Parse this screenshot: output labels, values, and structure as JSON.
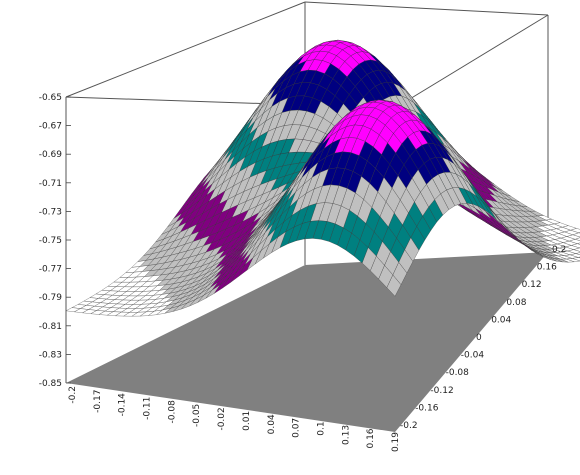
{
  "chart_data": {
    "type": "surface",
    "title": "",
    "z_axis": {
      "range": [
        -0.85,
        -0.65
      ],
      "ticks": [
        "-0.65",
        "-0.67",
        "-0.69",
        "-0.71",
        "-0.73",
        "-0.75",
        "-0.77",
        "-0.79",
        "-0.81",
        "-0.83",
        "-0.85"
      ]
    },
    "x_axis": {
      "range": [
        -0.2,
        0.19
      ],
      "ticks": [
        "-0.2",
        "-0.17",
        "-0.14",
        "-0.11",
        "-0.08",
        "-0.05",
        "-0.02",
        "0.01",
        "0.04",
        "0.07",
        "0.1",
        "0.13",
        "0.16",
        "0.19"
      ]
    },
    "y_axis": {
      "range": [
        -0.2,
        0.2
      ],
      "ticks": [
        "0.2",
        "0.16",
        "0.12",
        "0.08",
        "0.04",
        "0",
        "-0.04",
        "-0.08",
        "-0.12",
        "-0.16",
        "-0.2"
      ]
    },
    "surface": {
      "description_peaks": [
        {
          "x": -0.08,
          "y": -0.08,
          "z": -0.66
        },
        {
          "x": 0.1,
          "y": 0.1,
          "z": -0.65
        }
      ],
      "band_colors": [
        "#ff00ff",
        "#000080",
        "#c0c0c0",
        "#008080",
        "#c0c0c0",
        "#800080",
        "#c0c0c0",
        "#ffffff"
      ],
      "floor_color": "#808080",
      "mesh_color": "#333333"
    }
  }
}
